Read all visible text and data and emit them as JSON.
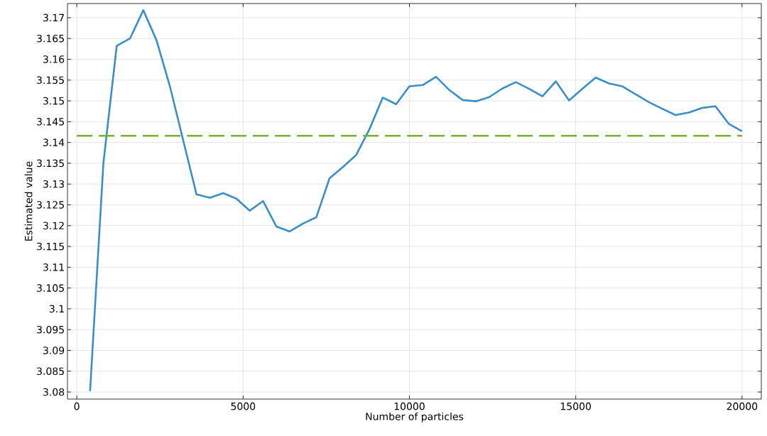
{
  "chart_data": {
    "type": "line",
    "xlabel": "Number of particles",
    "ylabel": "Estimated value",
    "series": [
      {
        "color": "#3b8ec8",
        "line_style": "solid",
        "x": [
          400,
          800,
          1200,
          1600,
          2000,
          2400,
          2800,
          3200,
          3600,
          4000,
          4400,
          4800,
          5200,
          5600,
          6000,
          6400,
          6800,
          7200,
          7600,
          8000,
          8400,
          8800,
          9200,
          9600,
          10000,
          10400,
          10800,
          11200,
          11600,
          12000,
          12400,
          12800,
          13200,
          13600,
          14000,
          14400,
          14800,
          15200,
          15600,
          16000,
          16400,
          16800,
          17200,
          17600,
          18000,
          18400,
          18800,
          19200,
          19600,
          20000
        ],
        "values": [
          3.0802,
          3.135,
          3.1632,
          3.165,
          3.1718,
          3.1645,
          3.1535,
          3.1405,
          3.1275,
          3.1267,
          3.1278,
          3.1265,
          3.1236,
          3.1259,
          3.1198,
          3.1186,
          3.1205,
          3.122,
          3.1314,
          3.1341,
          3.137,
          3.1432,
          3.1508,
          3.1492,
          3.1535,
          3.1538,
          3.1558,
          3.1526,
          3.1502,
          3.1499,
          3.1509,
          3.153,
          3.1545,
          3.1529,
          3.1511,
          3.1547,
          3.1501,
          3.1529,
          3.1556,
          3.1542,
          3.1535,
          3.1516,
          3.1497,
          3.1481,
          3.1466,
          3.1472,
          3.1483,
          3.1487,
          3.1445,
          3.1427
        ]
      },
      {
        "color": "#77b02a",
        "line_style": "dashed",
        "x": [
          0,
          20000
        ],
        "values": [
          3.1416,
          3.1416
        ]
      }
    ],
    "xlim": [
      -280,
      20580
    ],
    "ylim": [
      3.0783,
      3.1734
    ],
    "xticks": [
      0,
      5000,
      10000,
      15000,
      20000
    ],
    "yticks": [
      3.08,
      3.085,
      3.09,
      3.095,
      3.1,
      3.105,
      3.11,
      3.115,
      3.12,
      3.125,
      3.13,
      3.135,
      3.14,
      3.145,
      3.15,
      3.155,
      3.16,
      3.165,
      3.17
    ],
    "grid": true,
    "marker": "none"
  }
}
